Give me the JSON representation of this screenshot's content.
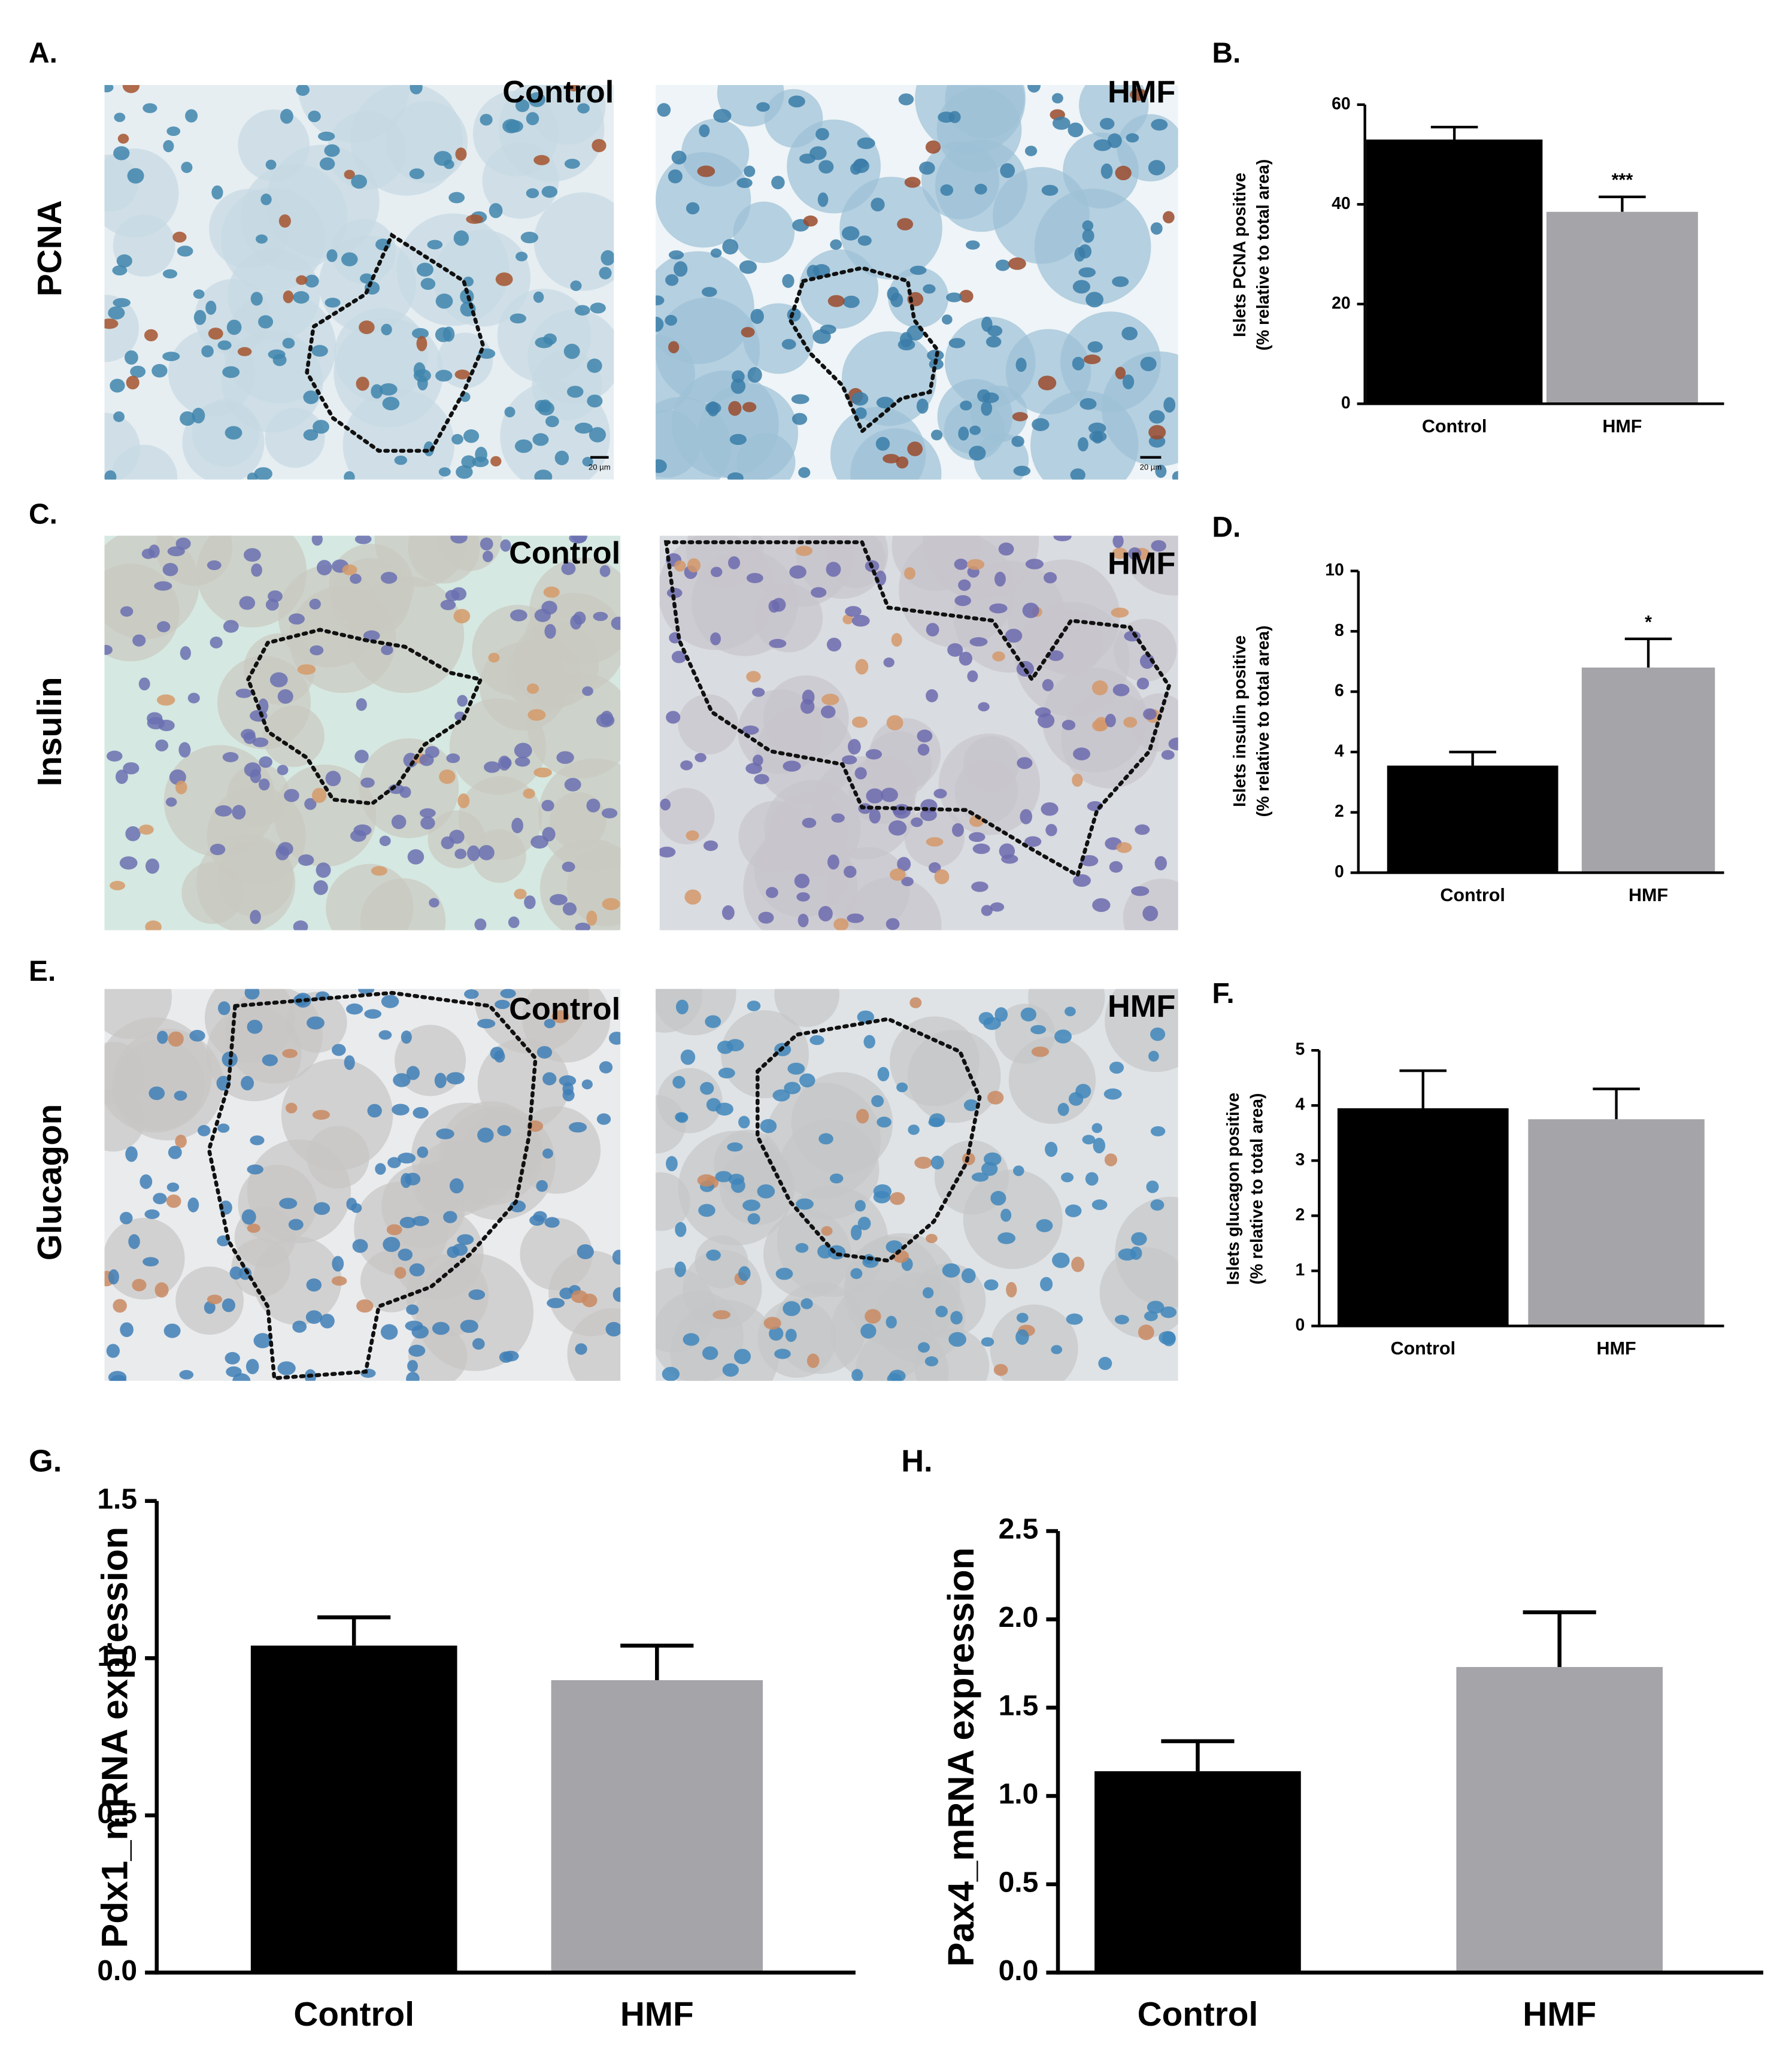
{
  "figure": {
    "panel_labels": [
      "A.",
      "B.",
      "C.",
      "D.",
      "E.",
      "F.",
      "G.",
      "H."
    ],
    "row_labels": [
      "PCNA",
      "Insulin",
      "Glucagon"
    ],
    "micrographs": [
      {
        "label": "Control",
        "scale_bar": "20 µm"
      },
      {
        "label": "HMF",
        "scale_bar": "20 µm"
      },
      {
        "label": "Control"
      },
      {
        "label": "HMF"
      },
      {
        "label": "Control"
      },
      {
        "label": "HMF"
      }
    ]
  },
  "chart_data": [
    {
      "type": "bar",
      "y_label": [
        "Islets PCNA positive",
        "(% relative to total area)"
      ],
      "categories": [
        "Control",
        "HMF"
      ],
      "values": [
        53,
        38.5
      ],
      "errors": [
        2.5,
        3
      ],
      "colors": [
        "#000000",
        "#a4a4a9"
      ],
      "significance": [
        null,
        "***"
      ],
      "ylim": [
        0,
        60
      ],
      "yticks": [
        0,
        20,
        40,
        60
      ]
    },
    {
      "type": "bar",
      "y_label": [
        "Islets insulin positive",
        "(% relative to total area)"
      ],
      "categories": [
        "Control",
        "HMF"
      ],
      "values": [
        3.55,
        6.8
      ],
      "errors": [
        0.45,
        0.95
      ],
      "colors": [
        "#000000",
        "#a4a4a9"
      ],
      "significance": [
        null,
        "*"
      ],
      "ylim": [
        0,
        10
      ],
      "yticks": [
        0,
        2,
        4,
        6,
        8,
        10
      ]
    },
    {
      "type": "bar",
      "y_label": [
        "Islets glucagon positive",
        "(% relative to total area)"
      ],
      "categories": [
        "Control",
        "HMF"
      ],
      "values": [
        3.95,
        3.75
      ],
      "errors": [
        0.68,
        0.55
      ],
      "colors": [
        "#000000",
        "#a4a4a9"
      ],
      "ylim": [
        0,
        5
      ],
      "yticks": [
        0,
        1,
        2,
        3,
        4,
        5
      ]
    },
    {
      "type": "bar",
      "y_label": [
        "Pdx1_mRNA expression"
      ],
      "categories": [
        "Control",
        "HMF"
      ],
      "values": [
        1.04,
        0.93
      ],
      "errors": [
        0.09,
        0.11
      ],
      "colors": [
        "#000000",
        "#a4a4a9"
      ],
      "ylim": [
        0,
        1.5
      ],
      "yticks": [
        {
          "value": 0,
          "label": "0.0"
        },
        0.5,
        {
          "value": 1,
          "label": "1.0"
        },
        1.5
      ]
    },
    {
      "type": "bar",
      "y_label": [
        "Pax4_mRNA expression"
      ],
      "categories": [
        "Control",
        "HMF"
      ],
      "values": [
        1.14,
        1.73
      ],
      "errors": [
        0.17,
        0.31
      ],
      "colors": [
        "#000000",
        "#a4a4a9"
      ],
      "ylim": [
        0,
        2.5
      ],
      "yticks": [
        {
          "value": 0,
          "label": "0.0"
        },
        0.5,
        {
          "value": 1,
          "label": "1.0"
        },
        1.5,
        {
          "value": 2,
          "label": "2.0"
        },
        2.5
      ]
    }
  ]
}
